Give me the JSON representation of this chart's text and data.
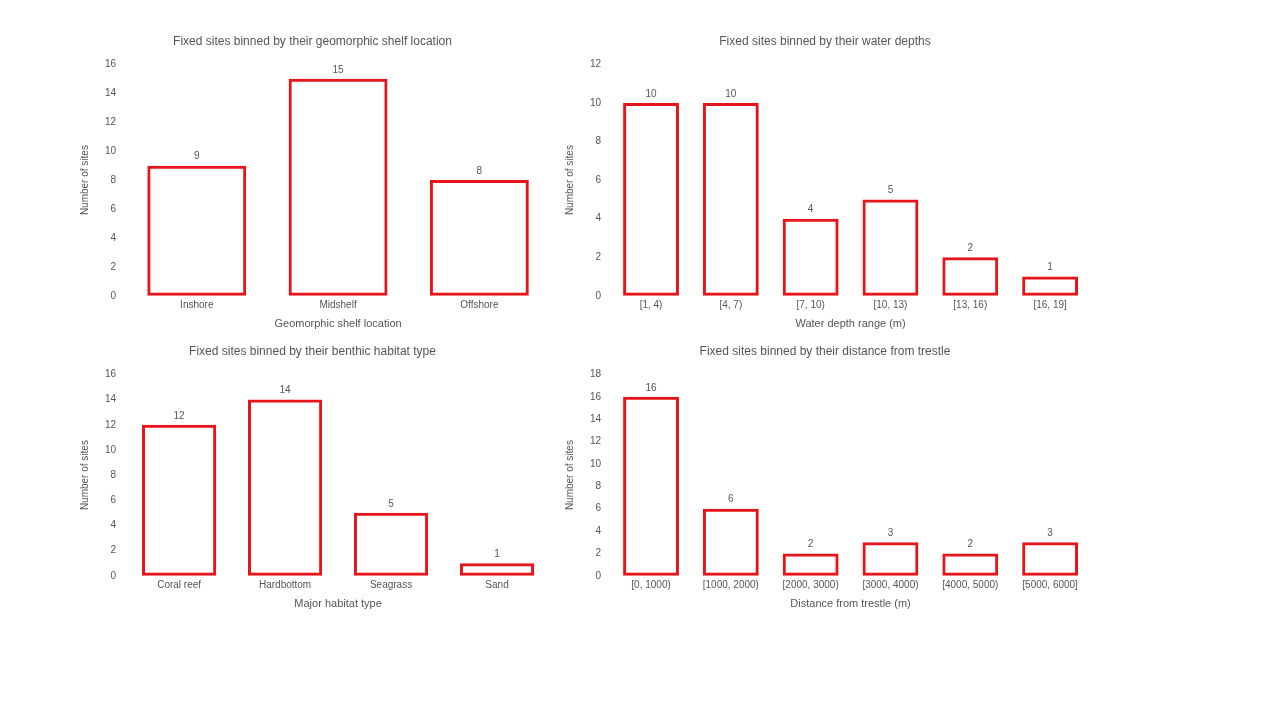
{
  "chart_data": [
    {
      "type": "bar",
      "title": "Fixed sites binned by their geomorphic shelf location",
      "xlabel": "Geomorphic shelf location",
      "ylabel": "Number of sites",
      "categories": [
        "Inshore",
        "Midshelf",
        "Offshore"
      ],
      "values": [
        9,
        15,
        8
      ],
      "color": "#e8141c",
      "ylim": [
        0,
        16
      ],
      "yticks": [
        0,
        2,
        4,
        6,
        8,
        10,
        12,
        14,
        16
      ],
      "grid": false,
      "data_labels": true
    },
    {
      "type": "bar",
      "title": "Fixed sites binned by their water depths",
      "xlabel": "Water depth range (m)",
      "ylabel": "Number of sites",
      "categories": [
        "[1, 4)",
        "[4, 7)",
        "[7, 10)",
        "[10, 13)",
        "[13, 16)",
        "[16, 19]"
      ],
      "values": [
        10,
        10,
        4,
        5,
        2,
        1
      ],
      "color": "#e8141c",
      "ylim": [
        0,
        12
      ],
      "yticks": [
        0,
        2,
        4,
        6,
        8,
        10,
        12
      ],
      "grid": false,
      "data_labels": true
    },
    {
      "type": "bar",
      "title": "Fixed sites binned by their benthic habitat type",
      "xlabel": "Major habitat type",
      "ylabel": "Number of sites",
      "categories": [
        "Coral reef",
        "Hardbottom",
        "Seagrass",
        "Sand"
      ],
      "values": [
        12,
        14,
        5,
        1
      ],
      "color": "#e8141c",
      "ylim": [
        0,
        16
      ],
      "yticks": [
        0,
        2,
        4,
        6,
        8,
        10,
        12,
        14,
        16
      ],
      "grid": false,
      "data_labels": true
    },
    {
      "type": "bar",
      "title": "Fixed sites binned by their distance from trestle",
      "xlabel": "Distance from trestle (m)",
      "ylabel": "Number of sites",
      "categories": [
        "[0, 1000)",
        "[1000, 2000)",
        "[2000, 3000)",
        "[3000, 4000)",
        "[4000, 5000)",
        "[5000, 6000]"
      ],
      "values": [
        16,
        6,
        2,
        3,
        2,
        3
      ],
      "color": "#e8141c",
      "ylim": [
        0,
        18
      ],
      "yticks": [
        0,
        2,
        4,
        6,
        8,
        10,
        12,
        14,
        16,
        18
      ],
      "grid": false,
      "data_labels": true
    }
  ]
}
